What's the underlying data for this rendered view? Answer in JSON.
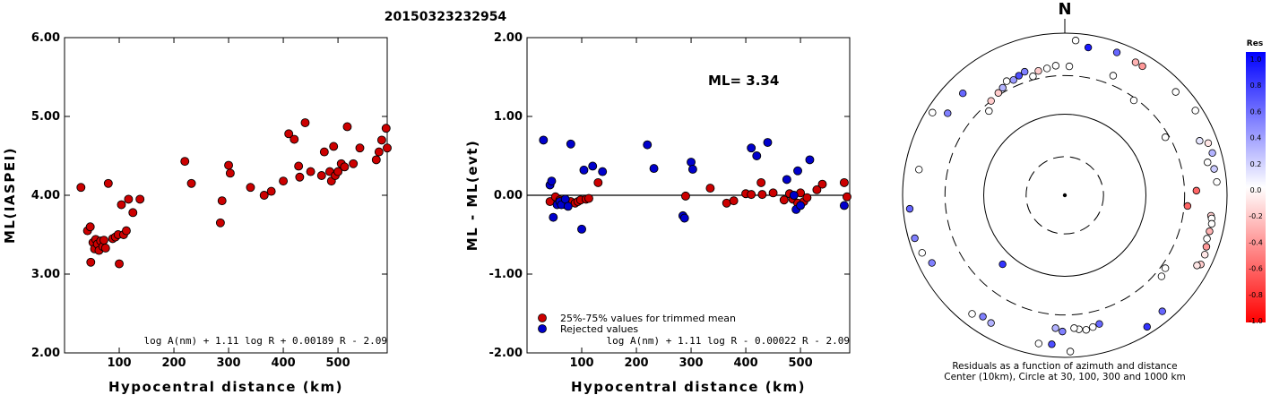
{
  "title": "20150323232954",
  "chart_data": [
    {
      "type": "scatter",
      "xlabel": "Hypocentral distance (km)",
      "ylabel": "ML(IASPEI)",
      "xlim": [
        0,
        590
      ],
      "ylim": [
        2.0,
        6.0
      ],
      "xticks": [
        "100",
        "200",
        "300",
        "400",
        "500"
      ],
      "xtick_values": [
        100,
        200,
        300,
        400,
        500
      ],
      "yticks": [
        "2.00",
        "3.00",
        "4.00",
        "5.00",
        "6.00"
      ],
      "ytick_values": [
        2,
        3,
        4,
        5,
        6
      ],
      "formula": "log A(nm) + 1.11 log R + 0.00189 R - 2.09",
      "marker_color": "#cc0000",
      "points": [
        [
          30,
          4.1
        ],
        [
          42,
          3.55
        ],
        [
          47,
          3.6
        ],
        [
          48,
          3.15
        ],
        [
          52,
          3.4
        ],
        [
          55,
          3.32
        ],
        [
          57,
          3.44
        ],
        [
          60,
          3.38
        ],
        [
          63,
          3.3
        ],
        [
          66,
          3.42
        ],
        [
          70,
          3.35
        ],
        [
          72,
          3.43
        ],
        [
          75,
          3.33
        ],
        [
          80,
          4.15
        ],
        [
          88,
          3.45
        ],
        [
          93,
          3.47
        ],
        [
          98,
          3.5
        ],
        [
          100,
          3.13
        ],
        [
          104,
          3.88
        ],
        [
          108,
          3.5
        ],
        [
          113,
          3.55
        ],
        [
          117,
          3.95
        ],
        [
          125,
          3.78
        ],
        [
          138,
          3.95
        ],
        [
          220,
          4.43
        ],
        [
          232,
          4.15
        ],
        [
          285,
          3.65
        ],
        [
          288,
          3.93
        ],
        [
          300,
          4.38
        ],
        [
          303,
          4.28
        ],
        [
          340,
          4.1
        ],
        [
          365,
          4.0
        ],
        [
          378,
          4.05
        ],
        [
          400,
          4.18
        ],
        [
          410,
          4.78
        ],
        [
          420,
          4.71
        ],
        [
          428,
          4.37
        ],
        [
          430,
          4.23
        ],
        [
          440,
          4.92
        ],
        [
          450,
          4.3
        ],
        [
          470,
          4.25
        ],
        [
          475,
          4.55
        ],
        [
          485,
          4.3
        ],
        [
          488,
          4.18
        ],
        [
          492,
          4.62
        ],
        [
          495,
          4.25
        ],
        [
          500,
          4.3
        ],
        [
          506,
          4.4
        ],
        [
          512,
          4.36
        ],
        [
          517,
          4.87
        ],
        [
          528,
          4.4
        ],
        [
          540,
          4.6
        ],
        [
          570,
          4.45
        ],
        [
          575,
          4.55
        ],
        [
          580,
          4.7
        ],
        [
          588,
          4.85
        ],
        [
          590,
          4.6
        ]
      ]
    },
    {
      "type": "scatter",
      "xlabel": "Hypocentral distance (km)",
      "ylabel": "ML - ML(evt)",
      "xlim": [
        0,
        590
      ],
      "ylim": [
        -2.0,
        2.0
      ],
      "xticks": [
        "100",
        "200",
        "300",
        "400",
        "500"
      ],
      "xtick_values": [
        100,
        200,
        300,
        400,
        500
      ],
      "yticks": [
        "-2.00",
        "-1.00",
        "0.00",
        "1.00",
        "2.00"
      ],
      "ytick_values": [
        -2,
        -1,
        0,
        1,
        2
      ],
      "annotation": "ML= 3.34",
      "formula": "log A(nm) + 1.11 log R - 0.00022 R - 2.09",
      "legend": [
        {
          "label": "25%-75% values for trimmed mean",
          "color": "#cc0000"
        },
        {
          "label": "Rejected values",
          "color": "#0000cc"
        }
      ],
      "series": [
        {
          "color": "#cc0000",
          "points": [
            [
              42,
              -0.08
            ],
            [
              52,
              -0.02
            ],
            [
              60,
              -0.06
            ],
            [
              66,
              -0.09
            ],
            [
              70,
              -0.12
            ],
            [
              80,
              -0.08
            ],
            [
              88,
              -0.1
            ],
            [
              93,
              -0.08
            ],
            [
              98,
              -0.06
            ],
            [
              108,
              -0.05
            ],
            [
              113,
              -0.04
            ],
            [
              130,
              0.16
            ],
            [
              290,
              -0.01
            ],
            [
              335,
              0.09
            ],
            [
              365,
              -0.1
            ],
            [
              378,
              -0.07
            ],
            [
              400,
              0.02
            ],
            [
              410,
              0.01
            ],
            [
              428,
              0.16
            ],
            [
              430,
              0.01
            ],
            [
              450,
              0.03
            ],
            [
              470,
              -0.06
            ],
            [
              480,
              0.02
            ],
            [
              486,
              -0.05
            ],
            [
              495,
              -0.1
            ],
            [
              500,
              0.03
            ],
            [
              506,
              -0.08
            ],
            [
              512,
              -0.03
            ],
            [
              530,
              0.07
            ],
            [
              540,
              0.14
            ],
            [
              580,
              0.16
            ],
            [
              585,
              -0.02
            ]
          ]
        },
        {
          "color": "#0000cc",
          "points": [
            [
              30,
              0.7
            ],
            [
              42,
              0.13
            ],
            [
              45,
              0.18
            ],
            [
              48,
              -0.28
            ],
            [
              55,
              -0.12
            ],
            [
              60,
              -0.08
            ],
            [
              63,
              -0.12
            ],
            [
              70,
              -0.05
            ],
            [
              75,
              -0.14
            ],
            [
              80,
              0.65
            ],
            [
              100,
              -0.43
            ],
            [
              104,
              0.32
            ],
            [
              120,
              0.37
            ],
            [
              138,
              0.3
            ],
            [
              220,
              0.64
            ],
            [
              232,
              0.34
            ],
            [
              285,
              -0.26
            ],
            [
              288,
              -0.29
            ],
            [
              300,
              0.42
            ],
            [
              303,
              0.33
            ],
            [
              410,
              0.6
            ],
            [
              420,
              0.5
            ],
            [
              440,
              0.67
            ],
            [
              475,
              0.2
            ],
            [
              488,
              0.0
            ],
            [
              492,
              -0.18
            ],
            [
              495,
              0.31
            ],
            [
              500,
              -0.13
            ],
            [
              517,
              0.45
            ],
            [
              580,
              -0.13
            ]
          ]
        }
      ]
    },
    {
      "type": "scatter",
      "subtype": "polar",
      "north_label": "N",
      "caption_lines": [
        "Residuals as a function of azimuth and distance",
        "Center (10km), Circle at 30, 100, 300 and 1000 km"
      ],
      "rings_km": [
        30,
        100,
        300,
        1000
      ],
      "points": [
        {
          "az": 9,
          "dist": 700,
          "res": 0.9
        },
        {
          "az": 4,
          "dist": 820,
          "res": 0.0
        },
        {
          "az": 20,
          "dist": 750,
          "res": 0.6
        },
        {
          "az": 28,
          "dist": 720,
          "res": -0.3
        },
        {
          "az": 31,
          "dist": 720,
          "res": -0.4
        },
        {
          "az": 47,
          "dist": 740,
          "res": 0.0
        },
        {
          "az": 57,
          "dist": 830,
          "res": 0.0
        },
        {
          "az": 68,
          "dist": 620,
          "res": 0.1
        },
        {
          "az": 70,
          "dist": 760,
          "res": -0.1
        },
        {
          "az": 74,
          "dist": 780,
          "res": 0.3
        },
        {
          "az": 77,
          "dist": 640,
          "res": 0.0
        },
        {
          "az": 80,
          "dist": 740,
          "res": 0.2
        },
        {
          "az": 85,
          "dist": 760,
          "res": 0.0
        },
        {
          "az": 88,
          "dist": 420,
          "res": -0.6
        },
        {
          "az": 98,
          "dist": 660,
          "res": -0.2
        },
        {
          "az": 99,
          "dist": 680,
          "res": 0.0
        },
        {
          "az": 101,
          "dist": 700,
          "res": 0.0
        },
        {
          "az": 104,
          "dist": 690,
          "res": -0.3
        },
        {
          "az": 107,
          "dist": 680,
          "res": 0.0
        },
        {
          "az": 110,
          "dist": 720,
          "res": -0.4
        },
        {
          "az": 113,
          "dist": 750,
          "res": -0.1
        },
        {
          "az": 117,
          "dist": 760,
          "res": -0.2
        },
        {
          "az": 118,
          "dist": 700,
          "res": -0.1
        },
        {
          "az": 126,
          "dist": 340,
          "res": 0.0
        },
        {
          "az": 130,
          "dist": 360,
          "res": 0.0
        },
        {
          "az": 140,
          "dist": 740,
          "res": 0.6
        },
        {
          "az": 148,
          "dist": 820,
          "res": 0.8
        },
        {
          "az": 165,
          "dist": 440,
          "res": 0.6
        },
        {
          "az": 168,
          "dist": 460,
          "res": 0.0
        },
        {
          "az": 171,
          "dist": 480,
          "res": 0.0
        },
        {
          "az": 174,
          "dist": 460,
          "res": 0.0
        },
        {
          "az": 176,
          "dist": 440,
          "res": 0.0
        },
        {
          "az": 178,
          "dist": 850,
          "res": 0.0
        },
        {
          "az": 181,
          "dist": 480,
          "res": 0.5
        },
        {
          "az": 184,
          "dist": 440,
          "res": 0.3
        },
        {
          "az": 185,
          "dist": 700,
          "res": 0.7
        },
        {
          "az": 190,
          "dist": 720,
          "res": 0.0
        },
        {
          "az": 210,
          "dist": 660,
          "res": 0.3
        },
        {
          "az": 214,
          "dist": 640,
          "res": 0.5
        },
        {
          "az": 218,
          "dist": 720,
          "res": 0.0
        },
        {
          "az": 243,
          "dist": 690,
          "res": 0.5
        },
        {
          "az": 248,
          "dist": 790,
          "res": 0.0
        },
        {
          "az": 254,
          "dist": 840,
          "res": 0.5
        },
        {
          "az": 265,
          "dist": 830,
          "res": 0.6
        },
        {
          "az": 280,
          "dist": 670,
          "res": 0.0
        },
        {
          "az": 305,
          "dist": 580,
          "res": 0.5
        },
        {
          "az": 315,
          "dist": 600,
          "res": 0.6
        },
        {
          "az": 302,
          "dist": 840,
          "res": 0.0
        },
        {
          "az": 318,
          "dist": 250,
          "res": 0.0
        },
        {
          "az": 322,
          "dist": 300,
          "res": -0.2
        },
        {
          "az": 327,
          "dist": 320,
          "res": -0.2
        },
        {
          "az": 330,
          "dist": 340,
          "res": 0.3
        },
        {
          "az": 333,
          "dist": 380,
          "res": 0.0
        },
        {
          "az": 336,
          "dist": 360,
          "res": 0.4
        },
        {
          "az": 339,
          "dist": 380,
          "res": 0.7
        },
        {
          "az": 342,
          "dist": 400,
          "res": 0.5
        },
        {
          "az": 345,
          "dist": 330,
          "res": 0.0
        },
        {
          "az": 348,
          "dist": 370,
          "res": -0.2
        },
        {
          "az": 352,
          "dist": 380,
          "res": 0.0
        },
        {
          "az": 356,
          "dist": 400,
          "res": 0.0
        },
        {
          "az": 2,
          "dist": 390,
          "res": 0.0
        },
        {
          "az": 22,
          "dist": 390,
          "res": 0.0
        },
        {
          "az": 36,
          "dist": 280,
          "res": 0.0
        },
        {
          "az": 60,
          "dist": 270,
          "res": 0.0
        },
        {
          "az": 95,
          "dist": 330,
          "res": -0.6
        },
        {
          "az": 222,
          "dist": 140,
          "res": 0.8
        }
      ],
      "colorbar": {
        "title": "Res",
        "labels": [
          "1.0",
          "0.8",
          "0.6",
          "0.4",
          "0.2",
          "0.0",
          "-0.2",
          "-0.4",
          "-0.6",
          "-0.8",
          "-1.0"
        ]
      }
    }
  ]
}
